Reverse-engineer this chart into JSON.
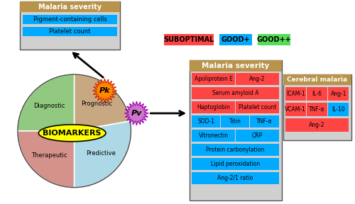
{
  "bg_color": "#ffffff",
  "pie_colors": [
    "#90c97f",
    "#c8a882",
    "#d4928a",
    "#add8e6"
  ],
  "pie_labels": [
    "Diagnostic",
    "Prognostic",
    "Therapeutic",
    "Predictive"
  ],
  "pk_box_header": "Malaria severity",
  "pk_box_header_color": "#b8934a",
  "pk_box_items": [
    {
      "text": "Pigment-containing cells",
      "color": "#00aaff"
    },
    {
      "text": "Platelet count",
      "color": "#00aaff"
    }
  ],
  "pv_box_header": "Malaria severity",
  "pv_box_header_color": "#b8934a",
  "pv_box_rows": [
    [
      {
        "text": "Apoliprotein E",
        "color": "#ff4444"
      },
      {
        "text": "Ang-2",
        "color": "#ff4444"
      }
    ],
    [
      {
        "text": "Serum amyloid A",
        "color": "#ff4444"
      }
    ],
    [
      {
        "text": "Haptoglobin",
        "color": "#ff4444"
      },
      {
        "text": "Platelet count",
        "color": "#ff4444"
      }
    ],
    [
      {
        "text": "SOD-1",
        "color": "#00aaff"
      },
      {
        "text": "Titin",
        "color": "#00aaff"
      },
      {
        "text": "TNF-α",
        "color": "#00aaff"
      }
    ],
    [
      {
        "text": "Vitronectin",
        "color": "#00aaff"
      },
      {
        "text": "CRP",
        "color": "#00aaff"
      }
    ],
    [
      {
        "text": "Protein carbonylation",
        "color": "#00aaff"
      }
    ],
    [
      {
        "text": "Lipid peroxidation",
        "color": "#00aaff"
      }
    ],
    [
      {
        "text": "Ang-2/1 ratio",
        "color": "#00aaff"
      }
    ]
  ],
  "cerebral_box_header": "Cerebral malaria",
  "cerebral_box_header_color": "#b8934a",
  "cerebral_box_rows": [
    [
      {
        "text": "ICAM-1",
        "color": "#ff4444"
      },
      {
        "text": "IL-6",
        "color": "#ff4444"
      },
      {
        "text": "Ang-1",
        "color": "#ff4444"
      }
    ],
    [
      {
        "text": "VCAM-1",
        "color": "#ff4444"
      },
      {
        "text": "TNF-α",
        "color": "#ff4444"
      },
      {
        "text": "IL-10",
        "color": "#00aaff"
      }
    ],
    [
      {
        "text": "Ang-2",
        "color": "#ff4444"
      }
    ]
  ],
  "legend_items": [
    {
      "text": "SUBOPTIMAL",
      "color": "#ff4444"
    },
    {
      "text": "GOOD+",
      "color": "#00aaff"
    },
    {
      "text": "GOOD++",
      "color": "#55dd55"
    }
  ],
  "biomarkers_color": "#ffff00",
  "biomarkers_text": "BIOMARKERS",
  "pk_label": "Pk",
  "pv_label": "Pv"
}
